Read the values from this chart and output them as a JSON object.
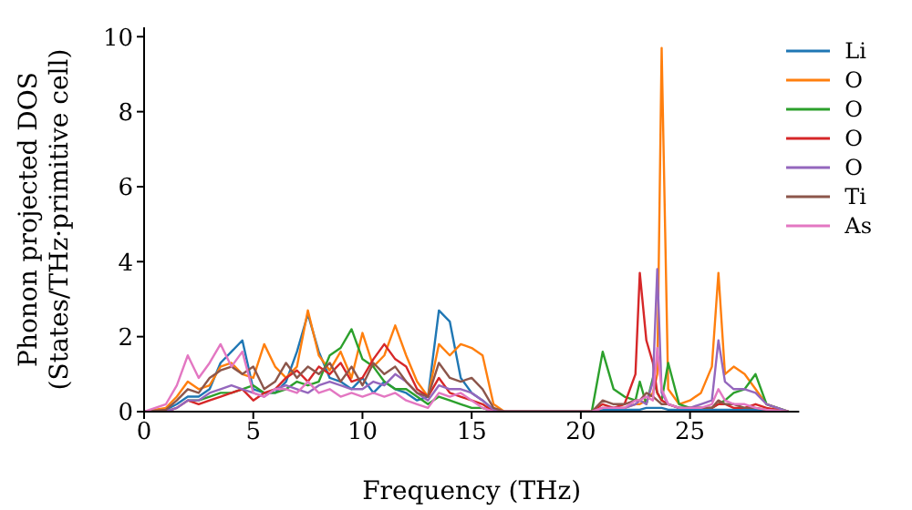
{
  "chart_data": {
    "type": "line",
    "xlabel": "Frequency (THz)",
    "ylabel": "Phonon projected DOS\n(States/THz·primitive cell)",
    "x": [
      0,
      1,
      1.5,
      2,
      2.5,
      3,
      3.5,
      4,
      4.5,
      5,
      5.5,
      6,
      6.5,
      7,
      7.5,
      8,
      8.5,
      9,
      9.5,
      10,
      10.5,
      11,
      11.5,
      12,
      12.5,
      13,
      13.5,
      14,
      14.5,
      15,
      15.5,
      16,
      16.5,
      20.5,
      21,
      21.5,
      22,
      22.5,
      22.7,
      23,
      23.3,
      23.5,
      23.7,
      24,
      24.5,
      25,
      25.5,
      26,
      26.3,
      26.6,
      27,
      27.5,
      28,
      28.5,
      29.5
    ],
    "series": [
      {
        "name": "Li",
        "color": "#1f77b4",
        "values": [
          0,
          0.05,
          0.2,
          0.4,
          0.4,
          0.6,
          1.3,
          1.6,
          1.9,
          0.6,
          0.5,
          0.5,
          0.8,
          1.6,
          2.6,
          1.6,
          0.9,
          0.8,
          0.6,
          0.9,
          0.5,
          0.8,
          0.6,
          0.5,
          0.3,
          0.4,
          2.7,
          2.4,
          0.9,
          0.5,
          0.3,
          0.05,
          0,
          0,
          0.05,
          0.05,
          0.05,
          0.05,
          0.05,
          0.1,
          0.1,
          0.1,
          0.1,
          0.05,
          0.05,
          0.05,
          0.05,
          0.05,
          0.05,
          0.05,
          0.05,
          0.05,
          0.05,
          0.02,
          0
        ]
      },
      {
        "name": "O",
        "color": "#ff7f0e",
        "values": [
          0,
          0.1,
          0.4,
          0.8,
          0.6,
          0.7,
          1.2,
          1.3,
          1,
          0.9,
          1.8,
          1.2,
          0.9,
          1.2,
          2.7,
          1.5,
          1.1,
          1.6,
          0.9,
          2.1,
          1.2,
          1.5,
          2.3,
          1.5,
          0.8,
          0.4,
          1.8,
          1.5,
          1.8,
          1.7,
          1.5,
          0.2,
          0,
          0,
          0.1,
          0.1,
          0.1,
          0.2,
          0.2,
          0.3,
          0.5,
          1,
          9.7,
          0.6,
          0.2,
          0.3,
          0.5,
          1.2,
          3.7,
          1,
          1.2,
          1,
          0.6,
          0.2,
          0
        ]
      },
      {
        "name": "O",
        "color": "#2ca02c",
        "values": [
          null,
          null,
          null,
          0.3,
          0.3,
          0.4,
          0.5,
          0.5,
          0.6,
          0.7,
          0.5,
          0.5,
          0.6,
          0.8,
          0.7,
          0.8,
          1.5,
          1.7,
          2.2,
          1.4,
          1.2,
          0.8,
          0.6,
          0.6,
          0.4,
          0.2,
          0.4,
          0.3,
          0.2,
          0.1,
          0.1,
          0,
          0,
          0,
          1.6,
          0.6,
          0.4,
          0.3,
          0.8,
          0.2,
          0.9,
          0.5,
          0.3,
          1.3,
          0.2,
          0.1,
          0.1,
          0.1,
          0.2,
          0.3,
          0.5,
          0.6,
          1,
          0.2,
          0
        ]
      },
      {
        "name": "O",
        "color": "#d62728",
        "values": [
          0,
          0,
          0.1,
          0.3,
          0.2,
          0.3,
          0.4,
          0.5,
          0.6,
          0.3,
          0.5,
          0.6,
          0.9,
          1.1,
          0.8,
          1.2,
          1,
          1.3,
          0.8,
          0.9,
          1.4,
          1.8,
          1.4,
          1.2,
          0.6,
          0.4,
          0.9,
          0.5,
          0.4,
          0.3,
          0.2,
          0,
          0,
          0,
          0.2,
          0.1,
          0.2,
          1,
          3.7,
          1.9,
          1.3,
          0.5,
          0.3,
          0.2,
          0.1,
          0.1,
          0.1,
          0.1,
          0.2,
          0.2,
          0.1,
          0.1,
          0.2,
          0.1,
          0
        ]
      },
      {
        "name": "O",
        "color": "#9467bd",
        "values": [
          0,
          0,
          0.1,
          0.3,
          0.3,
          0.5,
          0.6,
          0.7,
          0.6,
          0.5,
          0.4,
          0.6,
          0.7,
          0.6,
          0.5,
          0.7,
          0.8,
          0.7,
          0.6,
          0.6,
          0.8,
          0.7,
          1,
          0.8,
          0.5,
          0.3,
          0.7,
          0.6,
          0.6,
          0.5,
          0.3,
          0.05,
          0,
          0,
          0.1,
          0.1,
          0.1,
          0.2,
          0.3,
          0.2,
          0.8,
          3.8,
          0.5,
          0.2,
          0.1,
          0.1,
          0.2,
          0.3,
          1.9,
          0.8,
          0.6,
          0.6,
          0.5,
          0.2,
          0
        ]
      },
      {
        "name": "Ti",
        "color": "#8c564b",
        "values": [
          0,
          0.05,
          0.3,
          0.6,
          0.5,
          0.9,
          1.1,
          1.2,
          1,
          1.2,
          0.6,
          0.8,
          1.3,
          0.9,
          1.2,
          1,
          1.3,
          0.8,
          1.2,
          0.7,
          1.3,
          1,
          1.2,
          0.8,
          0.5,
          0.4,
          1.3,
          0.9,
          0.8,
          0.9,
          0.6,
          0.1,
          0,
          0,
          0.3,
          0.2,
          0.2,
          0.3,
          0.3,
          0.5,
          0.4,
          0.3,
          0.2,
          0.2,
          0.1,
          0.1,
          0.1,
          0.1,
          0.3,
          0.2,
          0.2,
          0.1,
          0.1,
          0.05,
          0
        ]
      },
      {
        "name": "As",
        "color": "#e377c2",
        "values": [
          0,
          0.2,
          0.7,
          1.5,
          0.9,
          1.3,
          1.8,
          1.2,
          1.6,
          0.5,
          0.4,
          0.6,
          0.6,
          0.5,
          0.8,
          0.5,
          0.6,
          0.4,
          0.5,
          0.4,
          0.5,
          0.4,
          0.5,
          0.3,
          0.2,
          0.1,
          0.5,
          0.4,
          0.5,
          0.3,
          0.1,
          0,
          0,
          0,
          0.1,
          0.1,
          0.1,
          0.3,
          0.3,
          0.4,
          0.3,
          1.7,
          0.6,
          0.2,
          0.1,
          0.1,
          0.1,
          0.2,
          0.6,
          0.3,
          0.2,
          0.2,
          0.1,
          0.05,
          0
        ]
      }
    ],
    "xlim": [
      0,
      30
    ],
    "xticks": [
      0,
      5,
      10,
      15,
      20,
      25
    ],
    "ylim": [
      0,
      10.25
    ],
    "yticks": [
      0,
      2,
      4,
      6,
      8,
      10
    ],
    "legend": "top right",
    "grid": false,
    "marker": "none",
    "line_style": "solid"
  }
}
